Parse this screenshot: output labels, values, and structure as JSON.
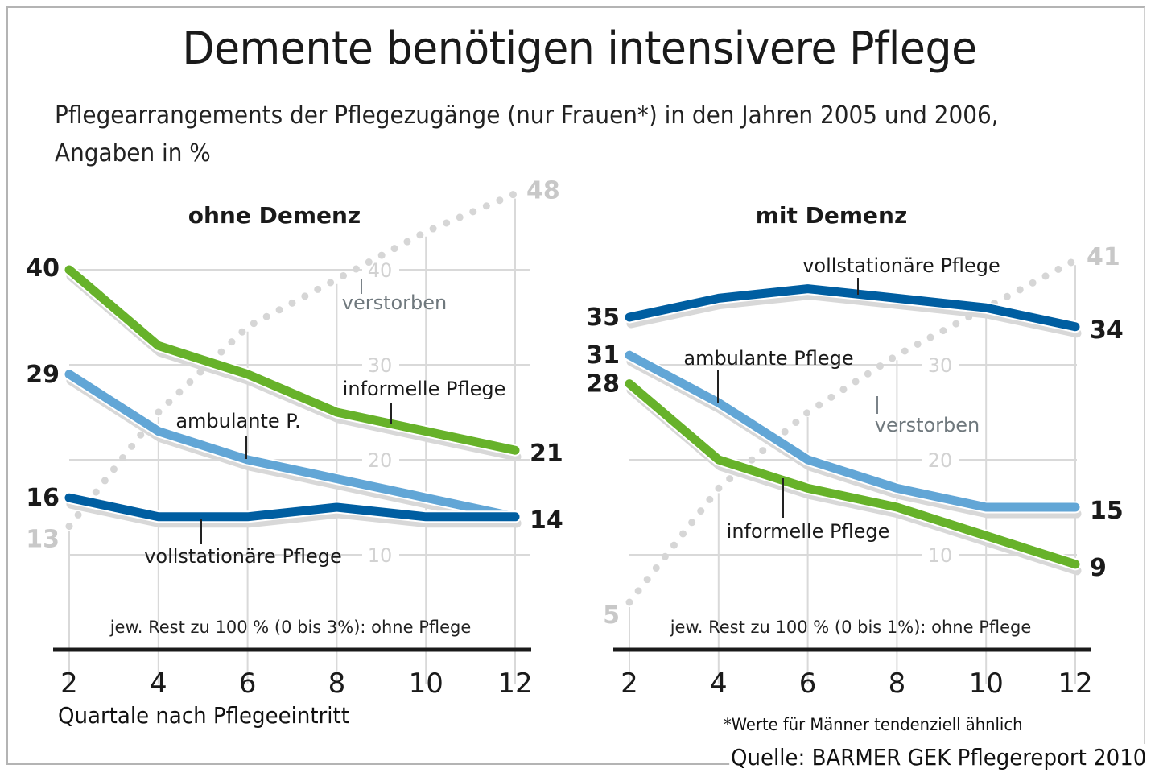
{
  "title": "Demente benötigen intensivere Pflege",
  "subtitle_line1": "Pflegearrangements der Pflegezugänge (nur Frauen*) in den Jahren 2005 und 2006,",
  "subtitle_line2": "Angaben in %",
  "xlabel": "Quartale nach Pflegeeintritt",
  "footnote": "*Werte für Männer tendenziell ähnlich",
  "source": "Quelle: BARMER GEK Pflegereport 2010",
  "colors": {
    "informelle": "#67b22a",
    "ambulante": "#62a6d6",
    "vollstationaer": "#005ea1",
    "verstorben": "#d6d6d6",
    "shadow": "#d8d8d8",
    "grid": "#d9d9d9"
  },
  "chart_data": [
    {
      "type": "line",
      "title": "ohne Demenz",
      "x": [
        2,
        4,
        6,
        8,
        10,
        12
      ],
      "xticks": [
        "2",
        "4",
        "6",
        "8",
        "10",
        "12"
      ],
      "ylim": [
        0,
        50
      ],
      "yticks": [
        "10",
        "20",
        "30",
        "40"
      ],
      "grid": true,
      "note": "jew. Rest zu 100 % (0 bis 3%): ohne Pflege",
      "series": [
        {
          "key": "verstorben",
          "name": "verstorben",
          "values": [
            13,
            25,
            34,
            39,
            44,
            48
          ],
          "start_label": "13",
          "end_label": "48",
          "style": "dotted"
        },
        {
          "key": "informelle",
          "name": "informelle Pflege",
          "values": [
            40,
            32,
            29,
            25,
            23,
            21
          ],
          "start_label": "40",
          "end_label": "21"
        },
        {
          "key": "ambulante",
          "name": "ambulante P.",
          "values": [
            29,
            23,
            20,
            18,
            16,
            14
          ],
          "start_label": "29",
          "end_label": ""
        },
        {
          "key": "vollstationaer",
          "name": "vollstationäre Pflege",
          "values": [
            16,
            14,
            14,
            15,
            14,
            14
          ],
          "start_label": "16",
          "end_label": "14"
        }
      ]
    },
    {
      "type": "line",
      "title": "mit Demenz",
      "x": [
        2,
        4,
        6,
        8,
        10,
        12
      ],
      "xticks": [
        "2",
        "4",
        "6",
        "8",
        "10",
        "12"
      ],
      "ylim": [
        0,
        50
      ],
      "yticks": [
        "10",
        "20",
        "30"
      ],
      "grid": true,
      "note": "jew. Rest zu 100 % (0 bis 1%): ohne Pflege",
      "series": [
        {
          "key": "verstorben",
          "name": "verstorben",
          "values": [
            5,
            17,
            25,
            31,
            36,
            41
          ],
          "start_label": "5",
          "end_label": "41",
          "style": "dotted"
        },
        {
          "key": "vollstationaer",
          "name": "vollstationäre Pflege",
          "values": [
            35,
            37,
            38,
            37,
            36,
            34
          ],
          "start_label": "35",
          "end_label": "34"
        },
        {
          "key": "ambulante",
          "name": "ambulante Pflege",
          "values": [
            31,
            26,
            20,
            17,
            15,
            15
          ],
          "start_label": "31",
          "end_label": "15"
        },
        {
          "key": "informelle",
          "name": "informelle Pflege",
          "values": [
            28,
            20,
            17,
            15,
            12,
            9
          ],
          "start_label": "28",
          "end_label": "9"
        }
      ]
    }
  ]
}
